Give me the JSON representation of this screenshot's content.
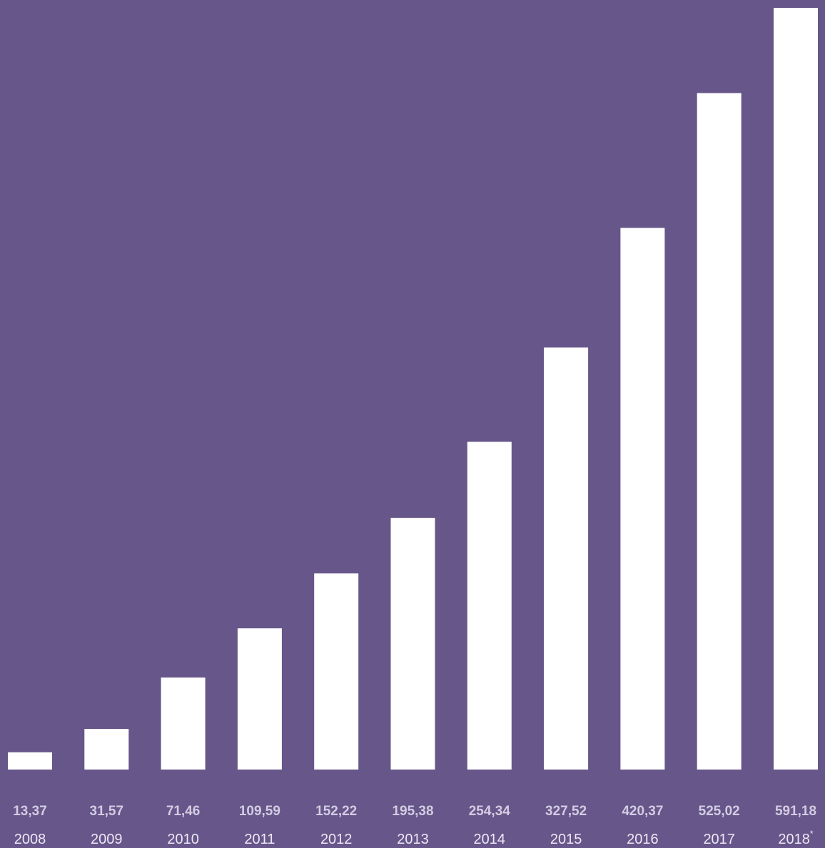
{
  "colors": {
    "background": "#66568a",
    "bar": "#ffffff",
    "value_text": "#d3cce2",
    "year_text": "#ece8f4"
  },
  "chart_data": {
    "type": "bar",
    "title": "",
    "xlabel": "",
    "ylabel": "",
    "grid": false,
    "ylim": [
      0,
      591.18
    ],
    "categories": [
      "2008",
      "2009",
      "2010",
      "2011",
      "2012",
      "2013",
      "2014",
      "2015",
      "2016",
      "2017",
      "2018"
    ],
    "category_marks": [
      "",
      "",
      "",
      "",
      "",
      "",
      "",
      "",
      "",
      "",
      "*"
    ],
    "values": [
      13.37,
      31.57,
      71.46,
      109.59,
      152.22,
      195.38,
      254.34,
      327.52,
      420.37,
      525.02,
      591.18
    ],
    "value_labels": [
      "13,37",
      "31,57",
      "71,46",
      "109,59",
      "152,22",
      "195,38",
      "254,34",
      "327,52",
      "420,37",
      "525,02",
      "591,18"
    ]
  }
}
